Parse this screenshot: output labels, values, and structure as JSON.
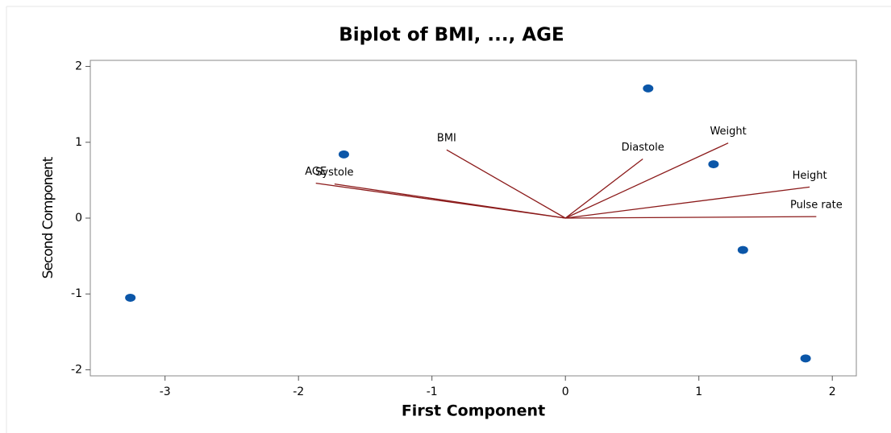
{
  "chart_data": {
    "type": "biplot",
    "title": "Biplot of BMI, ..., AGE",
    "xlabel": "First Component",
    "ylabel": "Second Component",
    "x": [
      0.62,
      -1.66,
      1.11,
      1.33,
      -3.26,
      1.8
    ],
    "y": [
      1.71,
      0.84,
      0.71,
      -0.42,
      -1.05,
      -1.85
    ],
    "color": "#0b56a8",
    "vectors": [
      {
        "name": "BMI",
        "x": -0.89,
        "y": 0.9
      },
      {
        "name": "Diastole",
        "x": 0.58,
        "y": 0.78
      },
      {
        "name": "Weight",
        "x": 1.22,
        "y": 0.99
      },
      {
        "name": "Height",
        "x": 1.83,
        "y": 0.41
      },
      {
        "name": "Pulse rate",
        "x": 1.88,
        "y": 0.02
      },
      {
        "name": "AGE",
        "x": -1.87,
        "y": 0.46
      },
      {
        "name": "Systole",
        "x": -1.73,
        "y": 0.45
      }
    ],
    "vector_color": "#8b1a1a",
    "xlim": [
      -3.56,
      2.18
    ],
    "ylim": [
      -2.08,
      2.08
    ],
    "xticks": [
      -3,
      -2,
      -1,
      0,
      1,
      2
    ],
    "yticks": [
      -2,
      -1,
      0,
      1,
      2
    ]
  }
}
